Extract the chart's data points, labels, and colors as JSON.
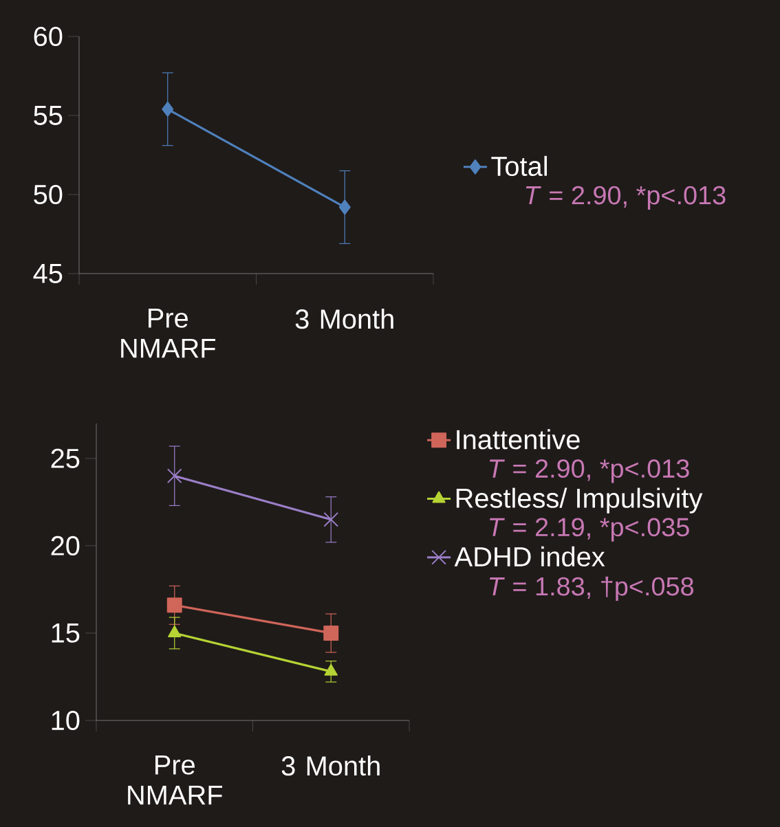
{
  "chart_data": [
    {
      "type": "line",
      "categories": [
        "Pre NMARF",
        "3 Month"
      ],
      "ylim": [
        45,
        60
      ],
      "yticks": [
        45,
        50,
        55,
        60
      ],
      "legend": "right",
      "series": [
        {
          "name": "Total",
          "color": "#4f81bd",
          "marker": "diamond",
          "values": [
            55.4,
            49.2
          ],
          "errors": [
            2.3,
            2.3
          ]
        }
      ],
      "annotations": [
        "*T* = 2.90, *p<.013"
      ]
    },
    {
      "type": "line",
      "categories": [
        "Pre NMARF",
        "3 Month"
      ],
      "ylim": [
        10,
        27
      ],
      "yticks": [
        10,
        15,
        20,
        25
      ],
      "legend": "top right",
      "series": [
        {
          "name": "Inattentive",
          "color": "#d0655a",
          "marker": "square",
          "values": [
            16.6,
            15.0
          ],
          "errors": [
            1.1,
            1.1
          ]
        },
        {
          "name": "Restless/ Impulsivity",
          "color": "#b5d334",
          "marker": "triangle",
          "values": [
            15.0,
            12.8
          ],
          "errors": [
            0.9,
            0.6
          ]
        },
        {
          "name": "ADHD index",
          "color": "#9b7fc8",
          "marker": "cross",
          "values": [
            24.0,
            21.5
          ],
          "errors": [
            1.7,
            1.3
          ]
        }
      ],
      "annotations": [
        "*T* = 2.90, *p<.013",
        "*T* = 2.19, *p<.035",
        "*T* = 1.83, †p<.058"
      ]
    }
  ]
}
